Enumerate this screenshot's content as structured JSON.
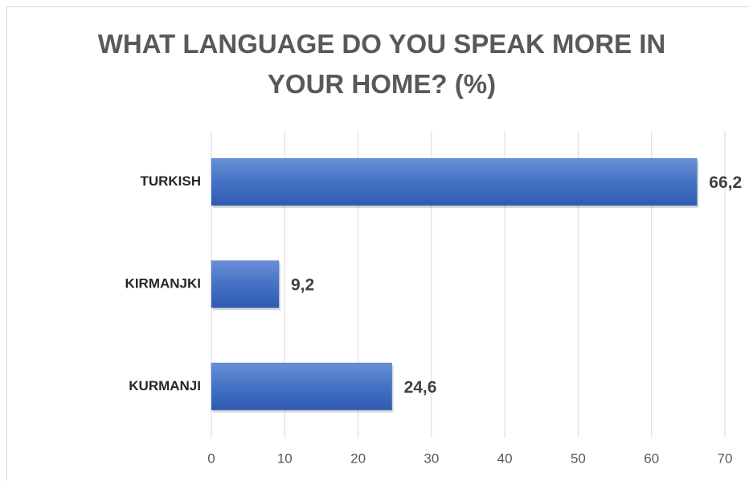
{
  "chart_data": {
    "type": "bar",
    "orientation": "horizontal",
    "title": "WHAT LANGUAGE DO YOU SPEAK MORE IN YOUR HOME? (%)",
    "categories": [
      "TURKISH",
      "KIRMANJKI",
      "KURMANJI"
    ],
    "values": [
      66.2,
      9.2,
      24.6
    ],
    "value_labels": [
      "66,2",
      "9,2",
      "24,6"
    ],
    "color": "#4472c4",
    "xlim": [
      0,
      70
    ],
    "xticks": [
      0,
      10,
      20,
      30,
      40,
      50,
      60,
      70
    ],
    "grid": true
  }
}
